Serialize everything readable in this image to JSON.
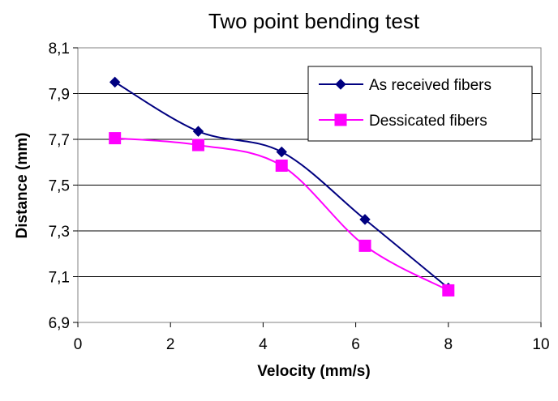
{
  "chart_data": {
    "type": "line",
    "title": "Two point bending test",
    "xlabel": "Velocity (mm/s)",
    "ylabel": "Distance (mm)",
    "xlim": [
      0,
      10
    ],
    "ylim": [
      6.9,
      8.1
    ],
    "x_ticks": [
      "0",
      "2",
      "4",
      "6",
      "8",
      "10"
    ],
    "y_ticks": [
      "6,9",
      "7,1",
      "7,3",
      "7,5",
      "7,7",
      "7,9",
      "8,1"
    ],
    "grid": "horizontal",
    "legend_position": "top-right",
    "smoothed": true,
    "series": [
      {
        "name": "As received fibers",
        "color": "#000080",
        "marker": "diamond",
        "x": [
          0.8,
          2.6,
          4.4,
          6.2,
          8.0
        ],
        "y": [
          7.95,
          7.735,
          7.645,
          7.35,
          7.05
        ]
      },
      {
        "name": "Dessicated fibers",
        "color": "#ff00ff",
        "marker": "square",
        "x": [
          0.8,
          2.6,
          4.4,
          6.2,
          8.0
        ],
        "y": [
          7.705,
          7.675,
          7.585,
          7.235,
          7.04
        ]
      }
    ]
  }
}
